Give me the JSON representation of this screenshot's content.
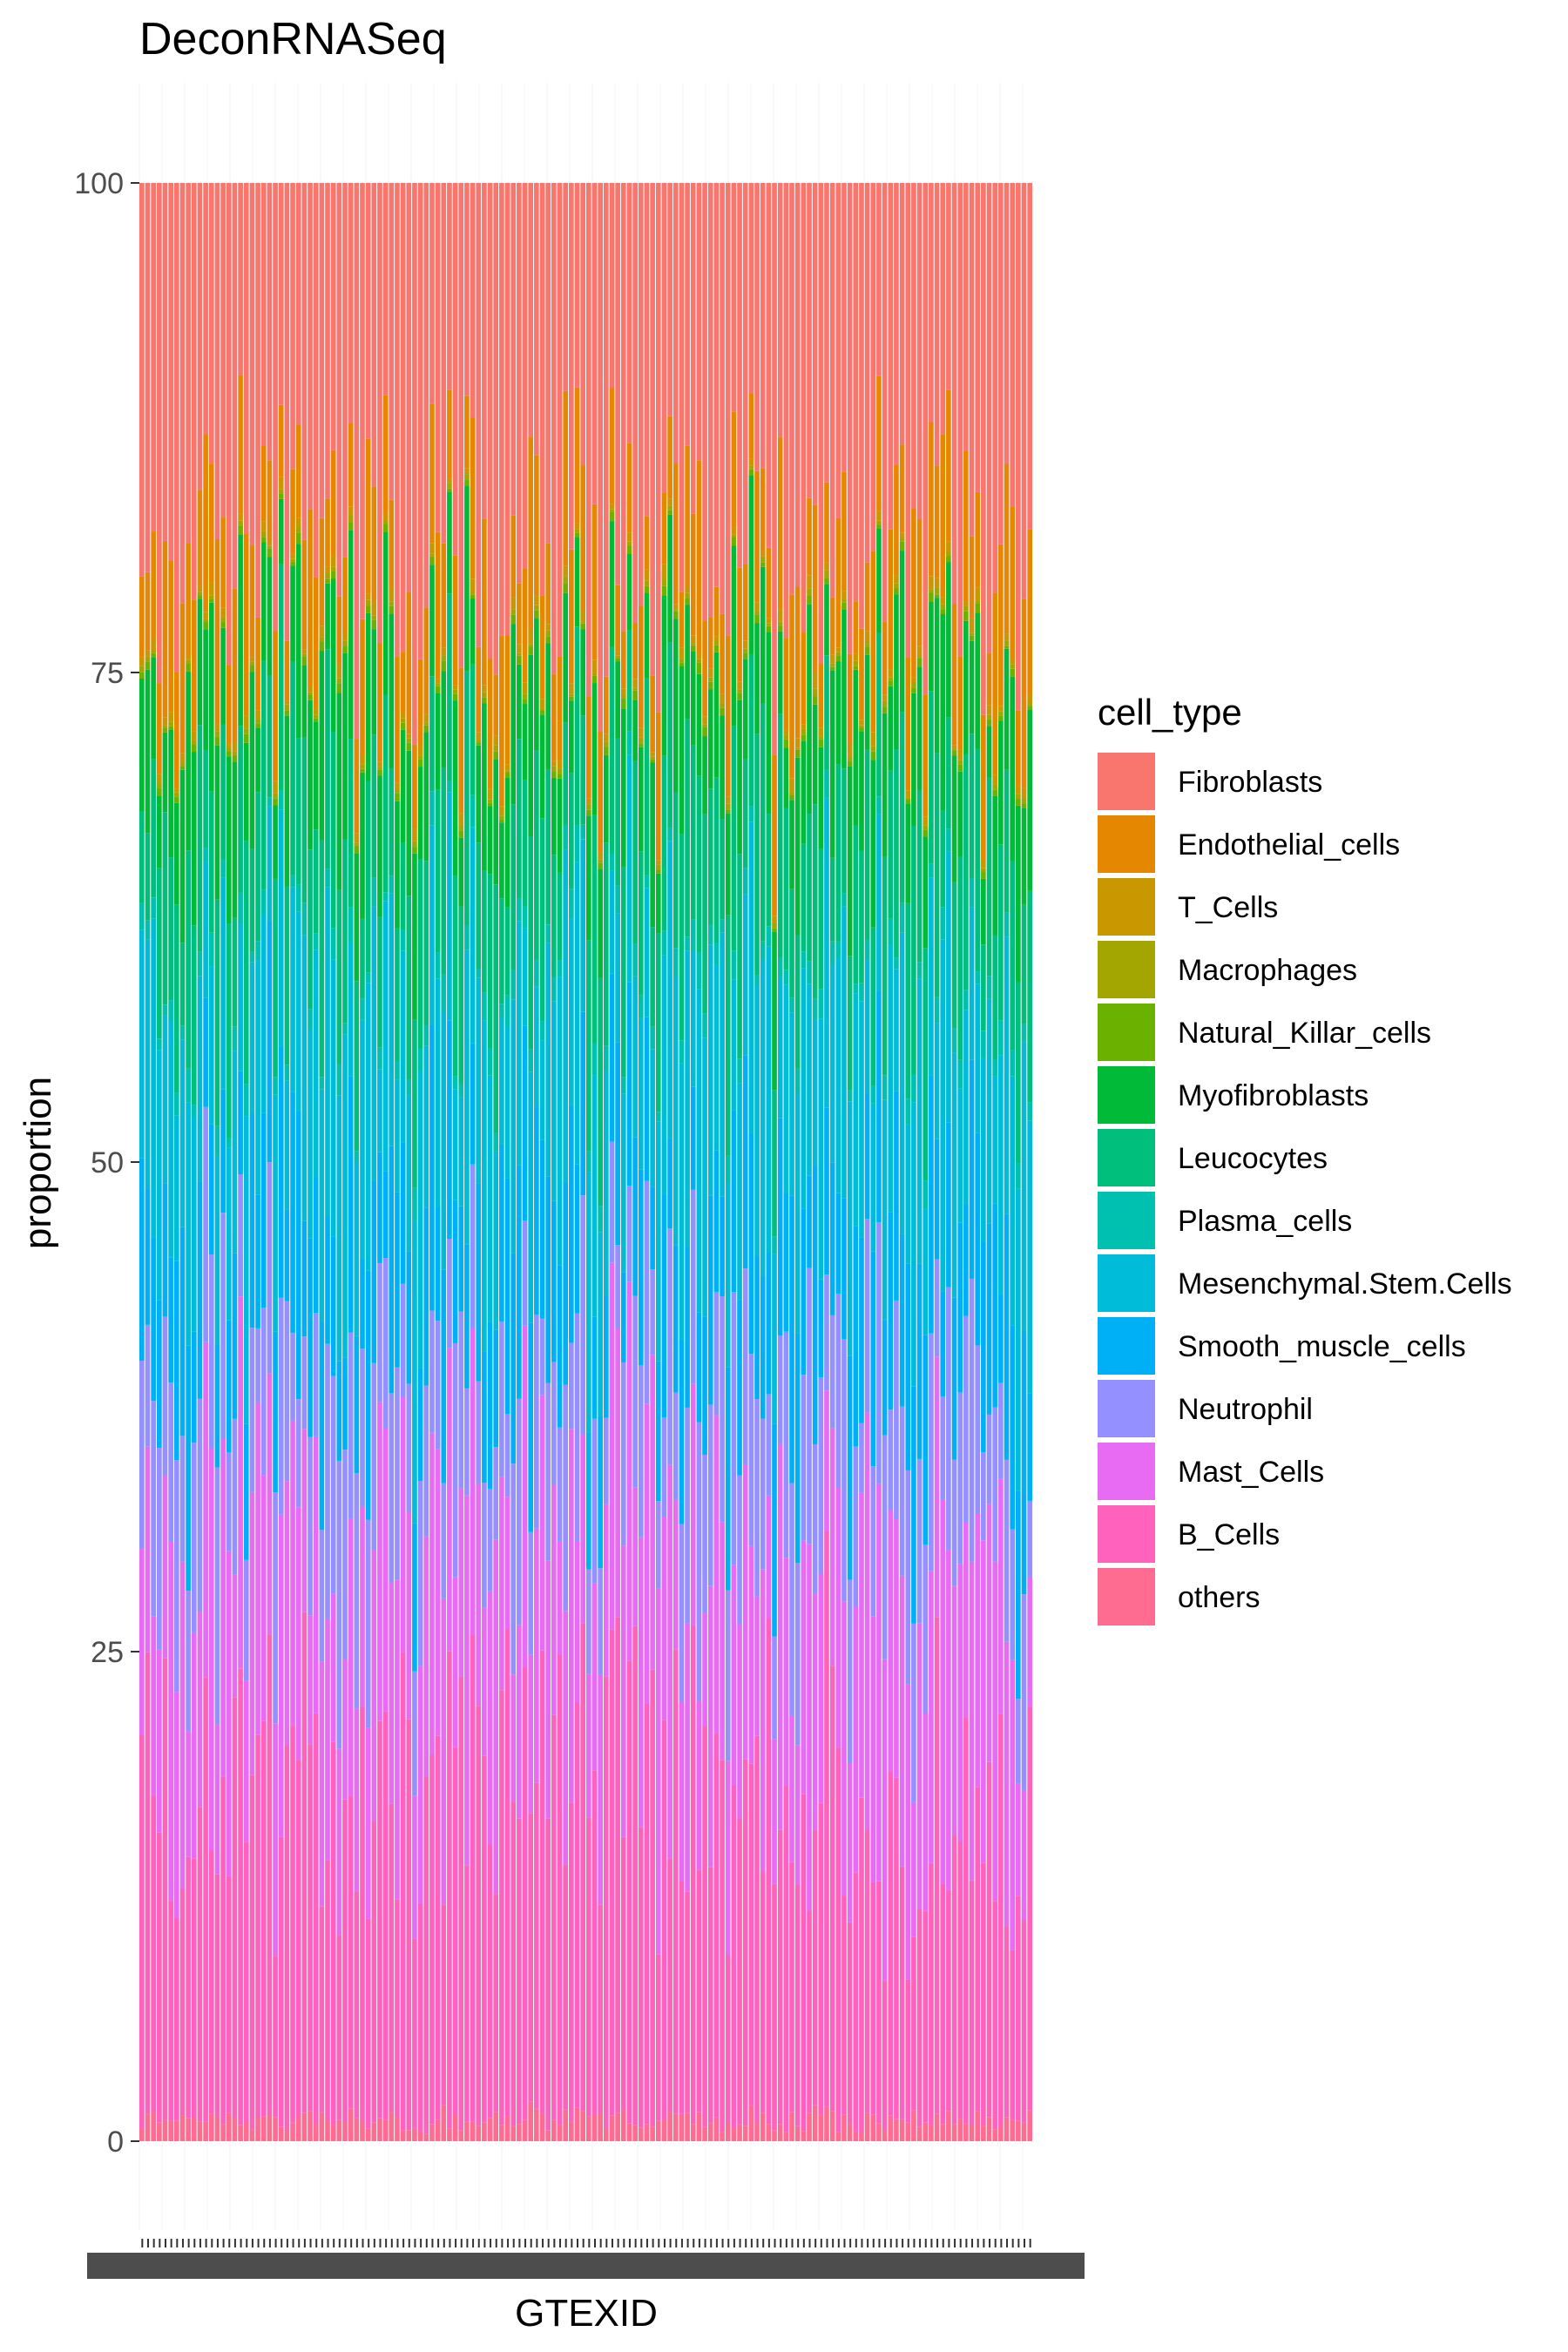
{
  "chart_data": {
    "type": "bar",
    "stacked": true,
    "title": "DeconRNASeq",
    "xlabel": "GTEXID",
    "ylabel": "proportion",
    "ylim": [
      0,
      100
    ],
    "yticks": [
      0,
      25,
      50,
      75,
      100
    ],
    "grid": false,
    "legend_position": "right",
    "legend_title": "cell_type",
    "n_samples": 154,
    "series": [
      {
        "name": "Fibroblasts",
        "color": "#F8766D",
        "mean": 18
      },
      {
        "name": "Endothelial_cells",
        "color": "#E58700",
        "mean": 5.5
      },
      {
        "name": "T_Cells",
        "color": "#C99800",
        "mean": 0.4
      },
      {
        "name": "Macrophages",
        "color": "#A3A500",
        "mean": 0.2
      },
      {
        "name": "Natural_Killar_cells",
        "color": "#6BB100",
        "mean": 0.3
      },
      {
        "name": "Myofibroblasts",
        "color": "#00BA38",
        "mean": 6
      },
      {
        "name": "Leucocytes",
        "color": "#00BF7D",
        "mean": 7.5
      },
      {
        "name": "Plasma_cells",
        "color": "#00C0AF",
        "mean": 1
      },
      {
        "name": "Mesenchymal.Stem.Cells",
        "color": "#00BCD8",
        "mean": 10
      },
      {
        "name": "Smooth_muscle_cells",
        "color": "#00B0F6",
        "mean": 8
      },
      {
        "name": "Neutrophil",
        "color": "#9590FF",
        "mean": 8
      },
      {
        "name": "Mast_Cells",
        "color": "#E76BF3",
        "mean": 12
      },
      {
        "name": "B_Cells",
        "color": "#FF62BC",
        "mean": 16
      },
      {
        "name": "others",
        "color": "#FF6C91",
        "mean": 1
      }
    ]
  }
}
